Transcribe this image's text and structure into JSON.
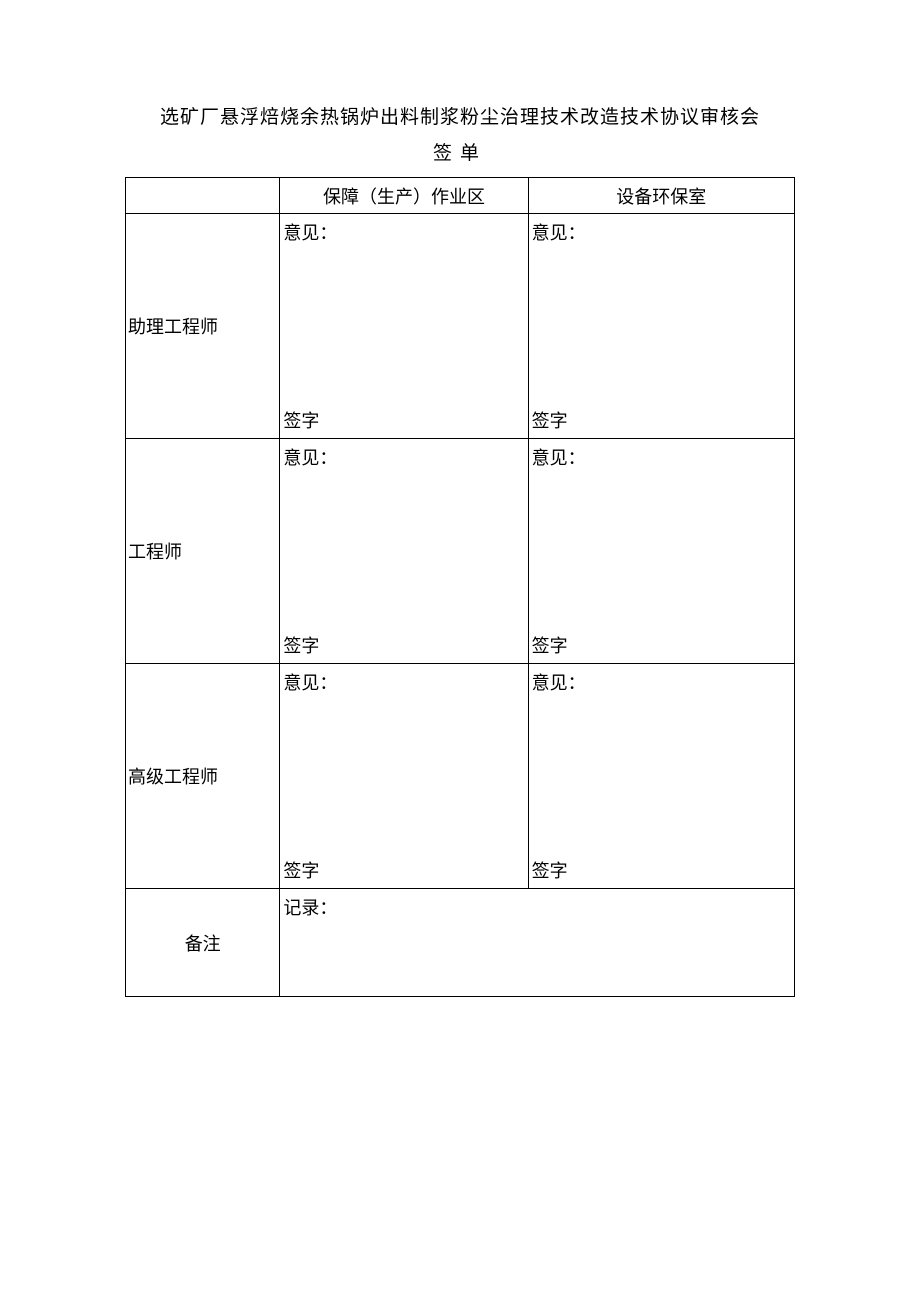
{
  "title": {
    "line1": "选矿厂悬浮焙烧余热锅炉出料制浆粉尘治理技术改造技术协议审核会",
    "line2": "签单"
  },
  "table": {
    "headers": {
      "col1": "",
      "col2": "保障（生产）作业区",
      "col3": "设备环保室"
    },
    "labels": {
      "opinion": "意见：",
      "sign": "签字",
      "record": "记录："
    },
    "rows": [
      {
        "role": "助理工程师"
      },
      {
        "role": "工程师"
      },
      {
        "role": "高级工程师"
      }
    ],
    "remark": "备注"
  },
  "style": {
    "borderColor": "#000000",
    "backgroundColor": "#ffffff",
    "textColor": "#000000",
    "titleFontSize": 19,
    "cellFontSize": 18
  }
}
